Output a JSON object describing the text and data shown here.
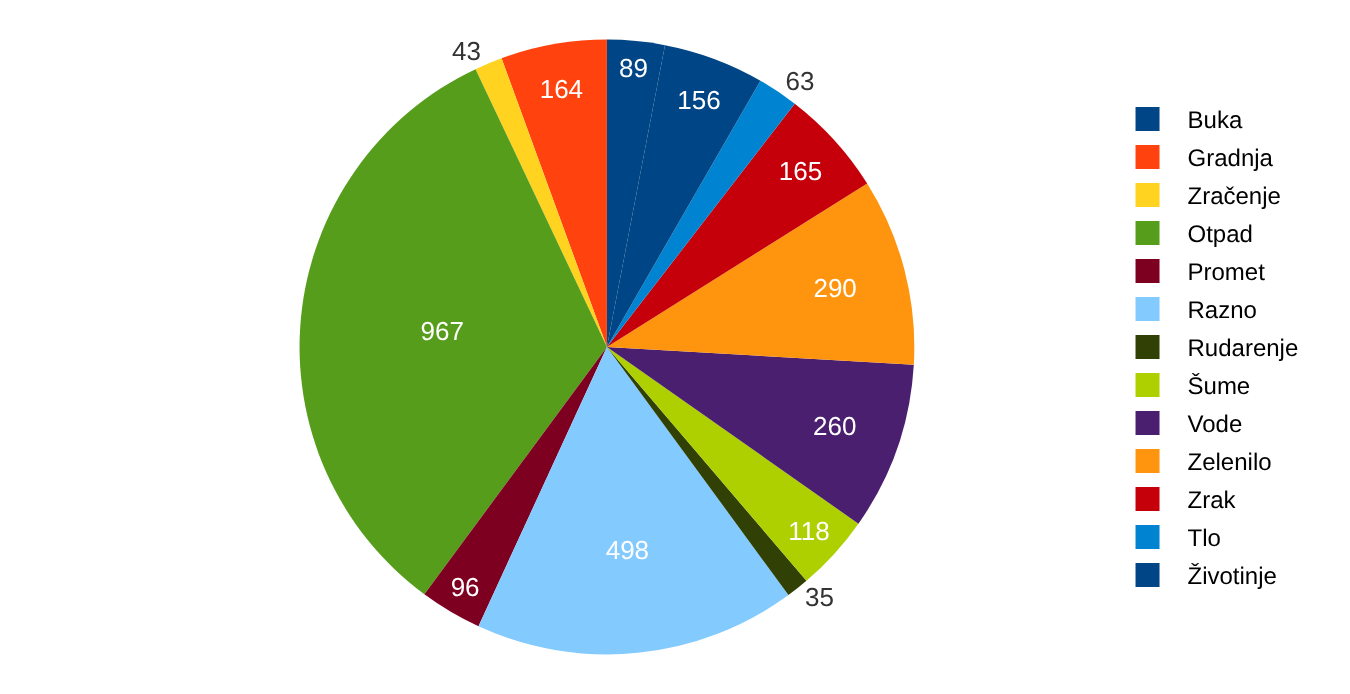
{
  "chart_data": {
    "type": "pie",
    "categories": [
      "Buka",
      "Gradnja",
      "Zračenje",
      "Otpad",
      "Promet",
      "Razno",
      "Rudarenje",
      "Šume",
      "Vode",
      "Zelenilo",
      "Zrak",
      "Tlo",
      "Životinje"
    ],
    "values": [
      89,
      164,
      43,
      967,
      96,
      498,
      35,
      118,
      260,
      290,
      165,
      63,
      156
    ],
    "colors": [
      "#004586",
      "#ff420e",
      "#ffd320",
      "#579d1c",
      "#7e0021",
      "#83caff",
      "#314004",
      "#aecf00",
      "#4b1f6f",
      "#ff950e",
      "#c5000b",
      "#0084d1",
      "#004586"
    ],
    "data_labels": true,
    "legend": "right"
  }
}
